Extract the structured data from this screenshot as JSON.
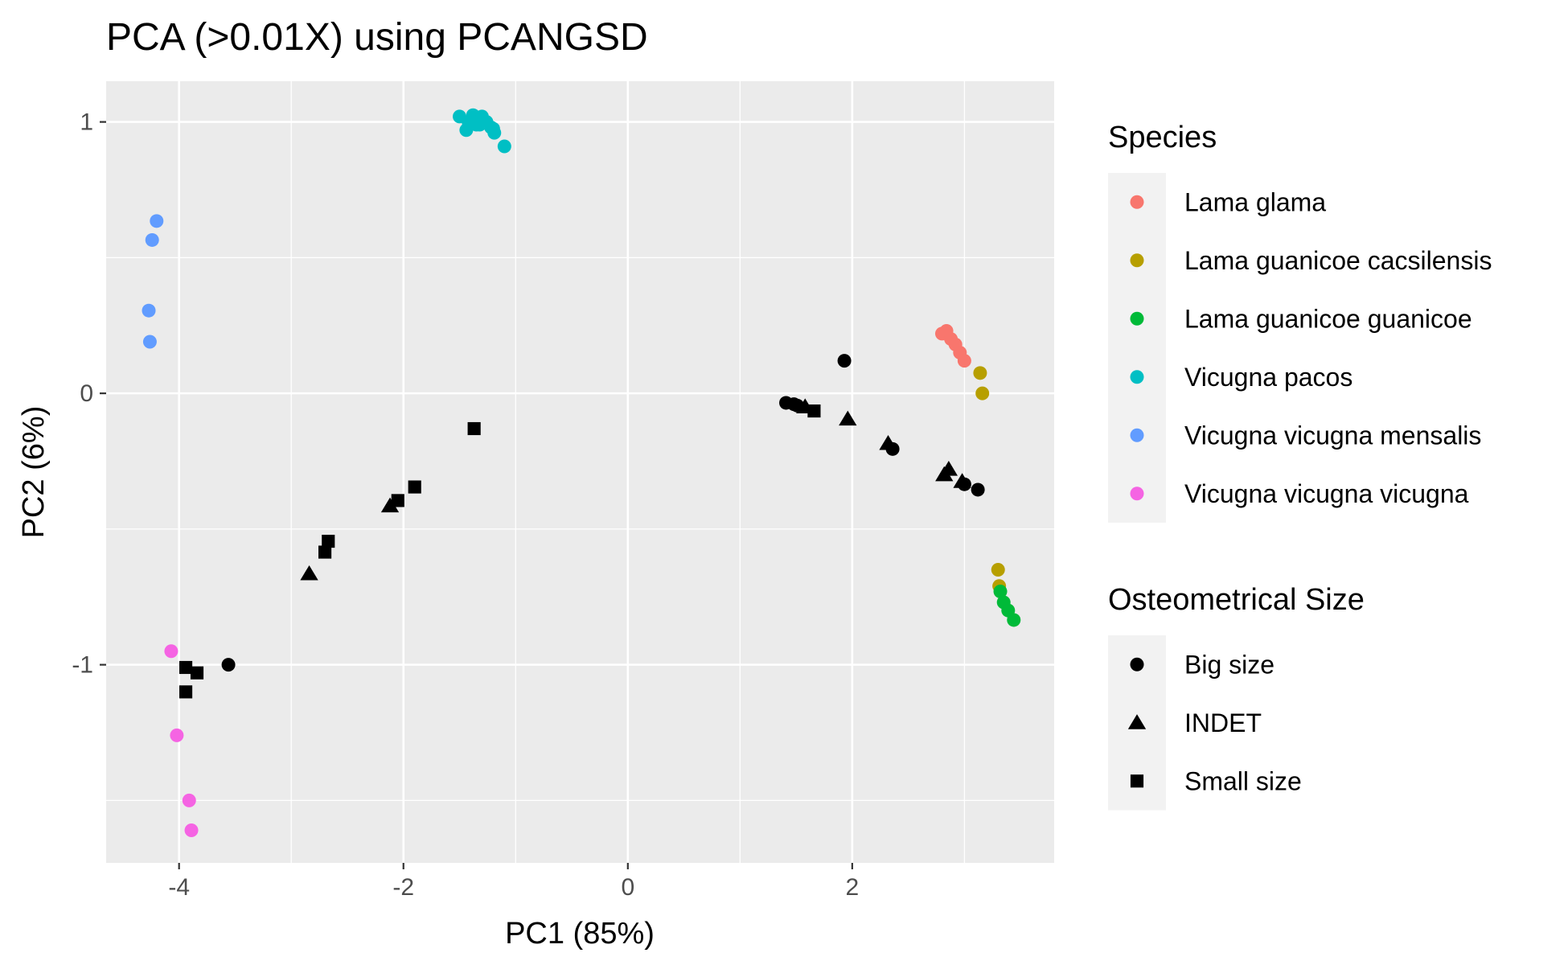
{
  "chart_data": {
    "type": "scatter",
    "title": "PCA (>0.01X) using PCANGSD",
    "xlabel": "PC1 (85%)",
    "ylabel": "PC2 (6%)",
    "xlim": [
      -4.65,
      3.8
    ],
    "ylim": [
      -1.73,
      1.15
    ],
    "x_ticks": [
      -4,
      -2,
      0,
      2
    ],
    "x_tick_labels": [
      "-4",
      "-2",
      "0",
      "2"
    ],
    "y_ticks": [
      -1,
      0,
      1
    ],
    "y_tick_labels": [
      "-1",
      "0",
      "1"
    ],
    "grid": true,
    "panel_background": "#EBEBEB",
    "legends": [
      {
        "title": "Species",
        "kind": "color",
        "entries": [
          {
            "label": "Lama glama",
            "color": "#F8766D"
          },
          {
            "label": "Lama guanicoe cacsilensis",
            "color": "#B79F00"
          },
          {
            "label": "Lama guanicoe guanicoe",
            "color": "#00BA38"
          },
          {
            "label": "Vicugna pacos",
            "color": "#00BFC4"
          },
          {
            "label": "Vicugna vicugna mensalis",
            "color": "#619CFF"
          },
          {
            "label": "Vicugna vicugna vicugna",
            "color": "#F564E3"
          }
        ]
      },
      {
        "title": "Osteometrical Size",
        "kind": "shape",
        "entries": [
          {
            "label": "Big size",
            "shape": "circle"
          },
          {
            "label": "INDET",
            "shape": "triangle"
          },
          {
            "label": "Small size",
            "shape": "square"
          }
        ]
      }
    ],
    "series": [
      {
        "name": "Lama glama",
        "kind": "species",
        "color": "#F8766D",
        "x": [
          2.8,
          2.84,
          2.88,
          2.92,
          2.96,
          3.0
        ],
        "y": [
          0.22,
          0.23,
          0.2,
          0.18,
          0.15,
          0.12
        ]
      },
      {
        "name": "Lama guanicoe cacsilensis",
        "kind": "species",
        "color": "#B79F00",
        "x": [
          3.14,
          3.16,
          3.3,
          3.31
        ],
        "y": [
          0.075,
          0.0,
          -0.65,
          -0.71
        ]
      },
      {
        "name": "Lama guanicoe guanicoe",
        "kind": "species",
        "color": "#00BA38",
        "x": [
          3.32,
          3.35,
          3.39,
          3.44
        ],
        "y": [
          -0.73,
          -0.77,
          -0.8,
          -0.835
        ]
      },
      {
        "name": "Vicugna pacos",
        "kind": "species",
        "color": "#00BFC4",
        "x": [
          -1.5,
          -1.44,
          -1.38,
          -1.35,
          -1.3,
          -1.26,
          -1.22,
          -1.19,
          -1.1,
          -1.42,
          -1.32,
          -1.2
        ],
        "y": [
          1.02,
          0.97,
          1.025,
          0.99,
          1.02,
          1.0,
          0.98,
          0.96,
          0.91,
          1.0,
          0.99,
          0.975
        ]
      },
      {
        "name": "Vicugna vicugna mensalis",
        "kind": "species",
        "color": "#619CFF",
        "x": [
          -4.2,
          -4.24,
          -4.27,
          -4.26
        ],
        "y": [
          0.635,
          0.565,
          0.305,
          0.19
        ]
      },
      {
        "name": "Vicugna vicugna vicugna",
        "kind": "species",
        "color": "#F564E3",
        "x": [
          -4.07,
          -4.02,
          -3.91,
          -3.89
        ],
        "y": [
          -0.95,
          -1.26,
          -1.5,
          -1.61
        ]
      },
      {
        "name": "Big size",
        "kind": "size",
        "shape": "circle",
        "color": "#000000",
        "x": [
          -3.56,
          1.41,
          1.48,
          1.51,
          1.93,
          2.36,
          3.0,
          3.12
        ],
        "y": [
          -1.0,
          -0.035,
          -0.04,
          -0.045,
          0.12,
          -0.205,
          -0.335,
          -0.355
        ]
      },
      {
        "name": "INDET",
        "kind": "size",
        "shape": "triangle",
        "color": "#000000",
        "x": [
          -2.84,
          -2.12,
          1.58,
          1.96,
          2.32,
          2.82,
          2.86,
          2.98
        ],
        "y": [
          -0.665,
          -0.415,
          -0.05,
          -0.095,
          -0.185,
          -0.3,
          -0.28,
          -0.325
        ]
      },
      {
        "name": "Small size",
        "kind": "size",
        "shape": "square",
        "color": "#000000",
        "x": [
          -3.94,
          -3.94,
          -3.84,
          -2.7,
          -2.67,
          -2.05,
          -1.9,
          -1.37,
          1.66
        ],
        "y": [
          -1.01,
          -1.1,
          -1.03,
          -0.585,
          -0.545,
          -0.395,
          -0.345,
          -0.13,
          -0.065
        ]
      }
    ]
  }
}
